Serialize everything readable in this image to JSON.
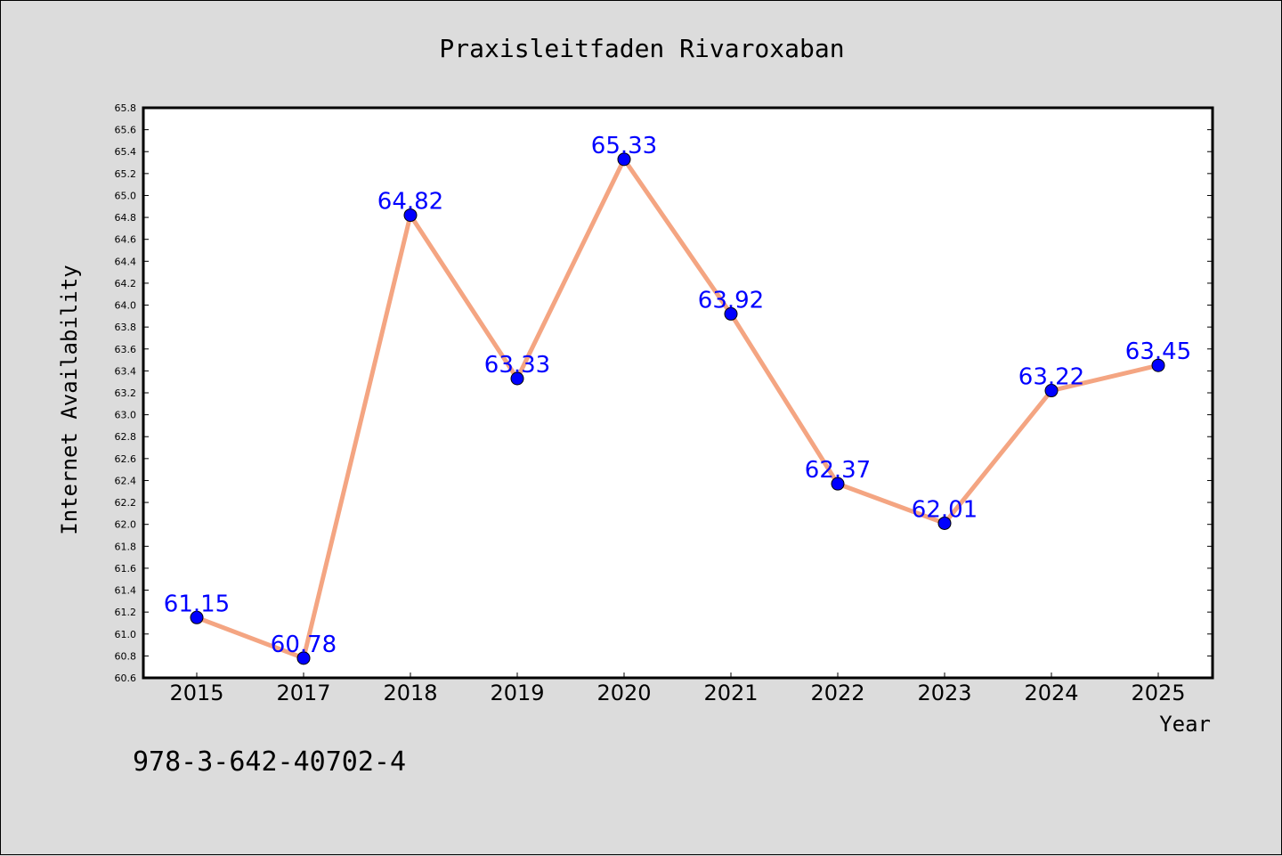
{
  "chart_data": {
    "type": "line",
    "title": "Praxisleitfaden Rivaroxaban",
    "xlabel": "Year",
    "ylabel": "Internet Availability",
    "categories": [
      "2015",
      "2017",
      "2018",
      "2019",
      "2020",
      "2021",
      "2022",
      "2023",
      "2024",
      "2025"
    ],
    "series": [
      {
        "values": [
          61.15,
          60.78,
          64.82,
          63.33,
          65.33,
          63.92,
          62.37,
          62.01,
          63.22,
          63.45
        ],
        "labels": [
          "61.15",
          "60.78",
          "64.82",
          "63.33",
          "65.33",
          "63.92",
          "62.37",
          "62.01",
          "63.22",
          "63.45"
        ],
        "line_color": "#f4a582",
        "marker_color": "#0000ff"
      }
    ],
    "ylim": [
      60.6,
      65.8
    ],
    "yticks": [
      "60.6",
      "60.8",
      "61.0",
      "61.2",
      "61.4",
      "61.6",
      "61.8",
      "62.0",
      "62.2",
      "62.4",
      "62.6",
      "62.8",
      "63.0",
      "63.2",
      "63.4",
      "63.6",
      "63.8",
      "64.0",
      "64.2",
      "64.4",
      "64.6",
      "64.8",
      "65.0",
      "65.2",
      "65.4",
      "65.6",
      "65.8"
    ],
    "grid": false,
    "annotation": "978-3-642-40702-4"
  }
}
